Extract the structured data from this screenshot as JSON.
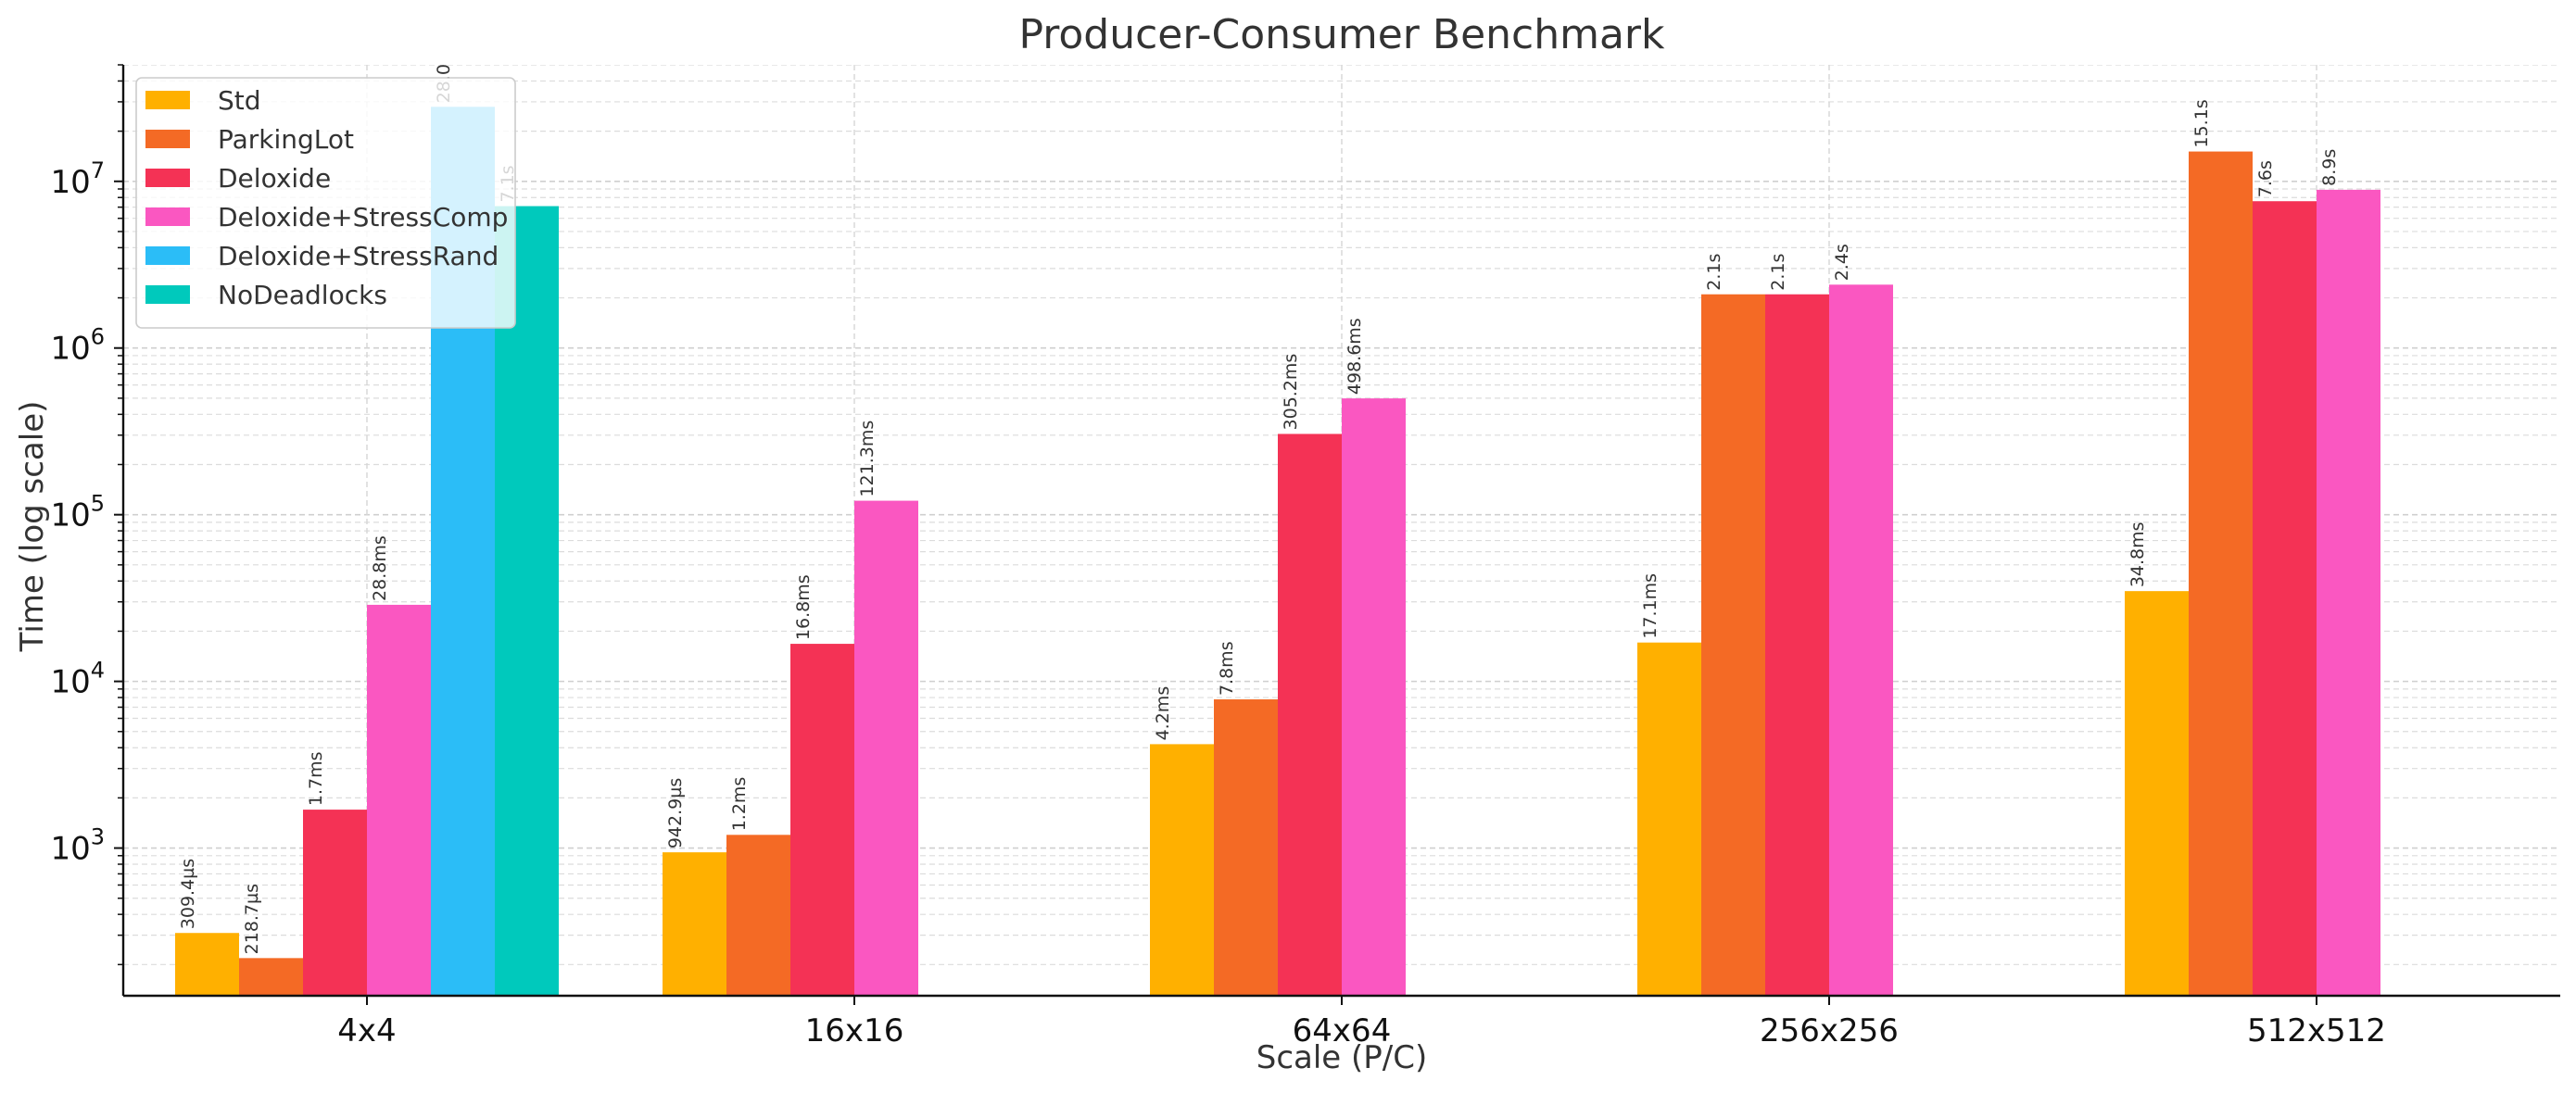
{
  "chart_data": {
    "type": "bar",
    "title": "Producer-Consumer Benchmark",
    "xlabel": "Scale (P/C)",
    "ylabel": "Time (log scale)",
    "yscale": "log",
    "ylim": [
      130,
      50000000
    ],
    "yticks": [
      {
        "value": 1000,
        "base": "10",
        "exp": "3"
      },
      {
        "value": 10000,
        "base": "10",
        "exp": "4"
      },
      {
        "value": 100000,
        "base": "10",
        "exp": "5"
      },
      {
        "value": 1000000,
        "base": "10",
        "exp": "6"
      },
      {
        "value": 10000000,
        "base": "10",
        "exp": "7"
      }
    ],
    "grid": true,
    "legend_position": "top-left",
    "categories": [
      "4x4",
      "16x16",
      "64x64",
      "256x256",
      "512x512"
    ],
    "series": [
      {
        "name": "Std",
        "color": "#FFB000",
        "values": [
          309.4,
          942.9,
          4200,
          17100,
          34800
        ],
        "labels": [
          "309.4µs",
          "942.9µs",
          "4.2ms",
          "17.1ms",
          "34.8ms"
        ]
      },
      {
        "name": "ParkingLot",
        "color": "#F46A25",
        "values": [
          218.7,
          1200,
          7800,
          2100000,
          15100000
        ],
        "labels": [
          "218.7µs",
          "1.2ms",
          "7.8ms",
          "2.1s",
          "15.1s"
        ]
      },
      {
        "name": "Deloxide",
        "color": "#F43255",
        "values": [
          1700,
          16800,
          305200,
          2100000,
          7600000
        ],
        "labels": [
          "1.7ms",
          "16.8ms",
          "305.2ms",
          "2.1s",
          "7.6s"
        ]
      },
      {
        "name": "Deloxide+StressComp",
        "color": "#FA57C1",
        "values": [
          28800,
          121300,
          498600,
          2400000,
          8900000
        ],
        "labels": [
          "28.8ms",
          "121.3ms",
          "498.6ms",
          "2.4s",
          "8.9s"
        ]
      },
      {
        "name": "Deloxide+StressRand",
        "color": "#2BBDF7",
        "values": [
          28000000,
          null,
          null,
          null,
          null
        ],
        "labels": [
          "28.0s",
          null,
          null,
          null,
          null
        ]
      },
      {
        "name": "NoDeadlocks",
        "color": "#00C9BC",
        "values": [
          7100000,
          null,
          null,
          null,
          null
        ],
        "labels": [
          "7.1s",
          null,
          null,
          null,
          null
        ]
      }
    ]
  }
}
